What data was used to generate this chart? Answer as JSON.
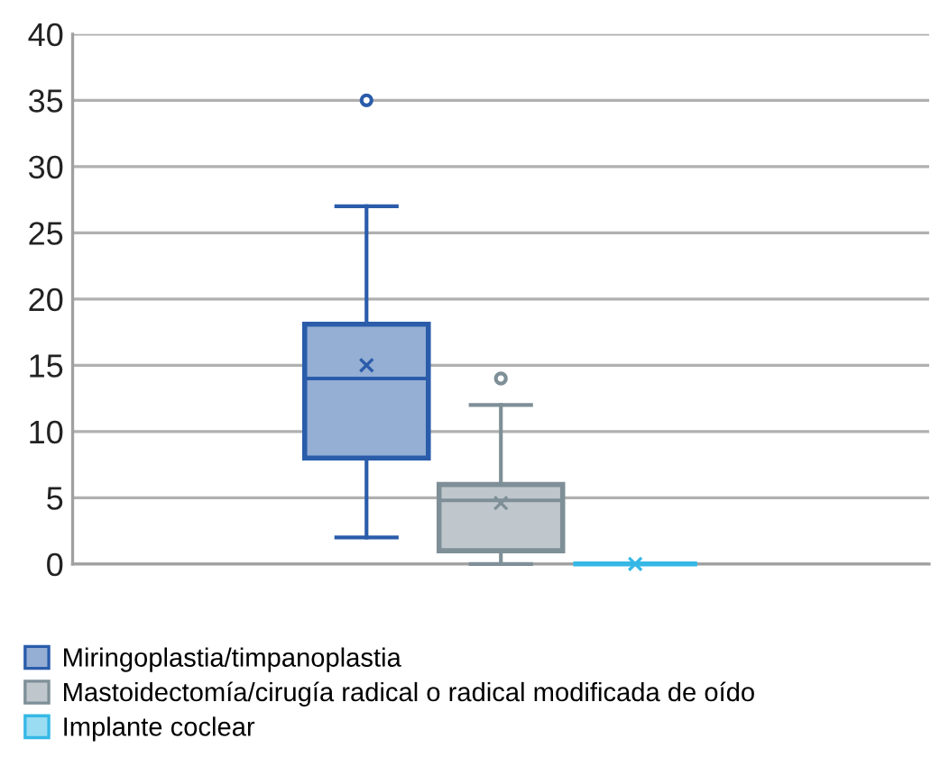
{
  "chart_data": {
    "type": "box",
    "categories": [
      null
    ],
    "series": [
      {
        "name": "Miringoplastia/timpanoplastia",
        "color": "#2a5caa",
        "boxes": [
          {
            "low": 2,
            "q1": 8,
            "median": 14,
            "q3": 18.1,
            "high": 27,
            "mean": 15,
            "outliers": [
              35
            ]
          }
        ]
      },
      {
        "name": "Mastoidectomía/cirugía radical o radical modificada de oído",
        "color": "#7f8f98",
        "boxes": [
          {
            "low": 0,
            "q1": 1,
            "median": 4.8,
            "q3": 6,
            "high": 12,
            "mean": 4.6,
            "outliers": [
              14
            ]
          }
        ]
      },
      {
        "name": "Implante coclear",
        "color": "#35b8e6",
        "boxes": [
          {
            "low": 0,
            "q1": 0,
            "median": 0,
            "q3": 0,
            "high": 0,
            "mean": 0
          }
        ]
      }
    ],
    "ylim": [
      0,
      40
    ],
    "yticks": [
      0,
      5,
      10,
      15,
      20,
      25,
      30,
      35,
      40
    ],
    "grid": "y",
    "legend": "bottom",
    "tick_labels": "y"
  }
}
